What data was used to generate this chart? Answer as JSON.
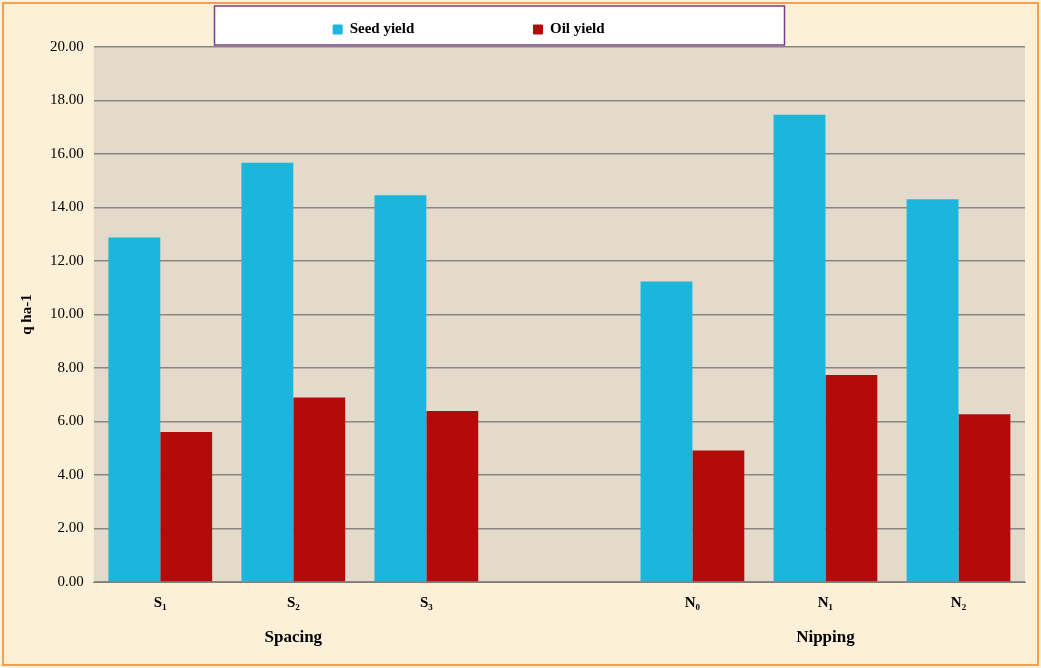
{
  "chart_data": {
    "type": "bar",
    "categories": [
      "S₁",
      "S₂",
      "S₃",
      null,
      "N₀",
      "N₁",
      "N₂"
    ],
    "series": [
      {
        "name": "Seed yield",
        "color": "#1cb6dc",
        "values": [
          12.88,
          15.67,
          14.46,
          null,
          11.23,
          17.47,
          14.31
        ]
      },
      {
        "name": "Oil yield",
        "color": "#b50a0a",
        "values": [
          5.61,
          6.9,
          6.39,
          null,
          4.92,
          7.74,
          6.27
        ]
      }
    ],
    "ylabel": "q ha-1",
    "ylim": [
      0,
      20
    ],
    "yticks": [
      {
        "value": 0,
        "label": "0.00"
      },
      {
        "value": 2,
        "label": "2.00"
      },
      {
        "value": 4,
        "label": "4.00"
      },
      {
        "value": 6,
        "label": "6.00"
      },
      {
        "value": 8,
        "label": "8.00"
      },
      {
        "value": 10,
        "label": "10.00"
      },
      {
        "value": 12,
        "label": "12.00"
      },
      {
        "value": 14,
        "label": "14.00"
      },
      {
        "value": 16,
        "label": "16.00"
      },
      {
        "value": 18,
        "label": "18.00"
      },
      {
        "value": 20,
        "label": "20.00"
      }
    ],
    "annotations": [
      "Spacing",
      "Nipping"
    ],
    "grid": "y",
    "legend": "top"
  }
}
